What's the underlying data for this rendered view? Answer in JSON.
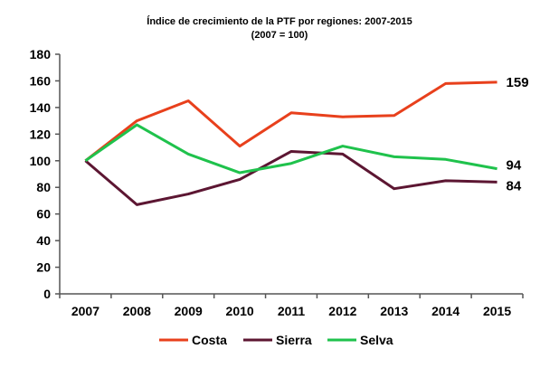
{
  "chart_data": {
    "type": "line",
    "title": "Índice de crecimiento de la PTF por regiones: 2007-2015",
    "subtitle": "(2007 = 100)",
    "xlabel": "",
    "ylabel": "",
    "ylim": [
      0,
      180
    ],
    "yticks": [
      "0",
      "20",
      "40",
      "60",
      "80",
      "100",
      "120",
      "140",
      "160",
      "180"
    ],
    "categories": [
      "2007",
      "2008",
      "2009",
      "2010",
      "2011",
      "2012",
      "2013",
      "2014",
      "2015"
    ],
    "grid": false,
    "legend_placement": "bottom",
    "series": [
      {
        "name": "Costa",
        "color": "#e8401c",
        "values": [
          100,
          130,
          145,
          111,
          136,
          133,
          134,
          158,
          159
        ],
        "end_label": "159"
      },
      {
        "name": "Sierra",
        "color": "#5c1632",
        "values": [
          100,
          67,
          75,
          86,
          107,
          105,
          79,
          85,
          84
        ],
        "end_label": "84"
      },
      {
        "name": "Selva",
        "color": "#1fc24c",
        "values": [
          100,
          127,
          105,
          91,
          98,
          111,
          103,
          101,
          94
        ],
        "end_label": "94"
      }
    ]
  }
}
